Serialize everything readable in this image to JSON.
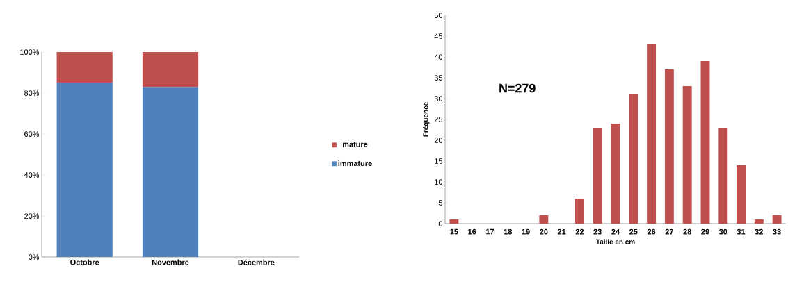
{
  "chart_data": [
    {
      "type": "bar",
      "stacked": true,
      "categories": [
        "Octobre",
        "Novembre",
        "Décembre"
      ],
      "series": [
        {
          "name": "immature",
          "color": "#4f81bd",
          "values": [
            85,
            83,
            null
          ]
        },
        {
          "name": "mature",
          "color": "#c0504d",
          "values": [
            15,
            17,
            null
          ]
        }
      ],
      "ylim": [
        0,
        100
      ],
      "yticks": [
        {
          "value": 0,
          "label": "0%"
        },
        {
          "value": 20,
          "label": "20%"
        },
        {
          "value": 40,
          "label": "40%"
        },
        {
          "value": 60,
          "label": "60%"
        },
        {
          "value": 80,
          "label": "80%"
        },
        {
          "value": 100,
          "label": "100%"
        }
      ],
      "legend": "right",
      "grid": false
    },
    {
      "type": "bar",
      "categories": [
        "15",
        "16",
        "17",
        "18",
        "19",
        "20",
        "21",
        "22",
        "23",
        "24",
        "25",
        "26",
        "27",
        "28",
        "29",
        "30",
        "31",
        "32",
        "33"
      ],
      "values": [
        1,
        0,
        0,
        0,
        0,
        2,
        0,
        6,
        23,
        24,
        31,
        43,
        37,
        33,
        39,
        23,
        14,
        1,
        2
      ],
      "color": "#c0504d",
      "ylim": [
        0,
        50
      ],
      "yticks": [
        0,
        5,
        10,
        15,
        20,
        25,
        30,
        35,
        40,
        45,
        50
      ],
      "xlabel": "Taille en cm",
      "ylabel": "Fréquence",
      "annotations": [
        "N=279"
      ],
      "grid": false
    }
  ]
}
